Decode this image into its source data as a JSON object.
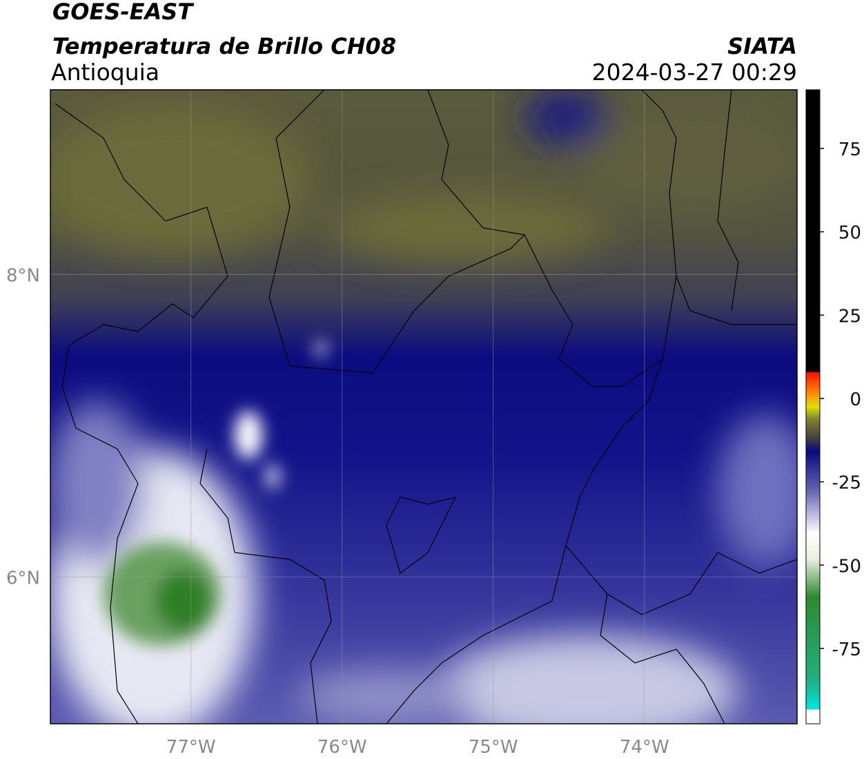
{
  "header": {
    "line1": "GOES-EAST",
    "line2": "Temperatura de Brillo CH08",
    "region": "Antioquia",
    "org": "SIATA",
    "timestamp": "2024-03-27 00:29"
  },
  "map": {
    "lon_range": [
      -77.93,
      -72.99
    ],
    "lat_range": [
      5.03,
      9.22
    ],
    "lon_ticks": [
      {
        "value": -77,
        "label": "77°W"
      },
      {
        "value": -76,
        "label": "76°W"
      },
      {
        "value": -75,
        "label": "75°W"
      },
      {
        "value": -74,
        "label": "74°W"
      }
    ],
    "lat_ticks": [
      {
        "value": 8,
        "label": "8°N"
      },
      {
        "value": 6,
        "label": "6°N"
      }
    ]
  },
  "colorbar": {
    "range": [
      -97.6,
      92.6
    ],
    "ticks": [
      75,
      50,
      25,
      0,
      -25,
      -50,
      -75
    ]
  }
}
